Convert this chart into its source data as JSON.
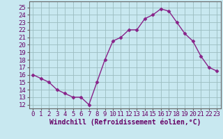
{
  "x": [
    0,
    1,
    2,
    3,
    4,
    5,
    6,
    7,
    8,
    9,
    10,
    11,
    12,
    13,
    14,
    15,
    16,
    17,
    18,
    19,
    20,
    21,
    22,
    23
  ],
  "y": [
    16,
    15.5,
    15,
    14,
    13.5,
    13,
    13,
    12,
    15,
    18,
    20.5,
    21,
    22,
    22,
    23.5,
    24,
    24.8,
    24.5,
    23,
    21.5,
    20.5,
    18.5,
    17,
    16.5
  ],
  "line_color": "#882288",
  "marker": "D",
  "markersize": 2.5,
  "linewidth": 1.0,
  "bg_color": "#c8e8f0",
  "grid_color": "#9bbcbf",
  "xlabel": "Windchill (Refroidissement éolien,°C)",
  "xlabel_fontsize": 7,
  "xtick_labels": [
    "0",
    "1",
    "2",
    "3",
    "4",
    "5",
    "6",
    "7",
    "8",
    "9",
    "10",
    "11",
    "12",
    "13",
    "14",
    "15",
    "16",
    "17",
    "18",
    "19",
    "20",
    "21",
    "22",
    "23"
  ],
  "ytick_min": 12,
  "ytick_max": 25,
  "ylim_min": 11.5,
  "ylim_max": 25.8,
  "xlim_min": -0.5,
  "xlim_max": 23.5,
  "tick_fontsize": 6.5,
  "tick_color": "#660066",
  "spine_color": "#666666",
  "xlabel_color": "#660066",
  "xlabel_bold": true
}
